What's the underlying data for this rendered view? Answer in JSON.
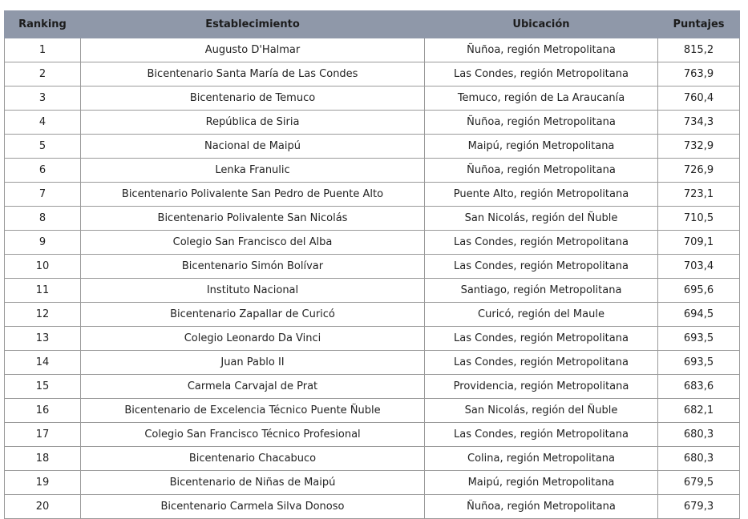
{
  "table": {
    "columns": [
      "Ranking",
      "Establecimiento",
      "Ubicación",
      "Puntajes"
    ],
    "rows": [
      [
        1,
        "Augusto D'Halmar",
        "Ñuñoa, región Metropolitana",
        "815,2"
      ],
      [
        2,
        "Bicentenario Santa María de Las Condes",
        "Las Condes, región Metropolitana",
        "763,9"
      ],
      [
        3,
        "Bicentenario de Temuco",
        "Temuco, región de La Araucanía",
        "760,4"
      ],
      [
        4,
        "República de Siria",
        "Ñuñoa, región Metropolitana",
        "734,3"
      ],
      [
        5,
        "Nacional de Maipú",
        "Maipú, región Metropolitana",
        "732,9"
      ],
      [
        6,
        "Lenka Franulic",
        "Ñuñoa, región Metropolitana",
        "726,9"
      ],
      [
        7,
        "Bicentenario Polivalente San Pedro de Puente Alto",
        "Puente Alto, región Metropolitana",
        "723,1"
      ],
      [
        8,
        "Bicentenario Polivalente San Nicolás",
        "San Nicolás, región del Ñuble",
        "710,5"
      ],
      [
        9,
        "Colegio San Francisco del Alba",
        "Las Condes, región Metropolitana",
        "709,1"
      ],
      [
        10,
        "Bicentenario Simón Bolívar",
        "Las Condes, región Metropolitana",
        "703,4"
      ],
      [
        11,
        "Instituto Nacional",
        "Santiago, región Metropolitana",
        "695,6"
      ],
      [
        12,
        "Bicentenario Zapallar de Curicó",
        "Curicó, región del Maule",
        "694,5"
      ],
      [
        13,
        "Colegio Leonardo Da Vinci",
        "Las Condes, región Metropolitana",
        "693,5"
      ],
      [
        14,
        "Juan Pablo II",
        "Las Condes, región Metropolitana",
        "693,5"
      ],
      [
        15,
        "Carmela Carvajal de Prat",
        "Providencia, región Metropolitana",
        "683,6"
      ],
      [
        16,
        "Bicentenario de Excelencia Técnico Puente Ñuble",
        "San Nicolás, región del Ñuble",
        "682,1"
      ],
      [
        17,
        "Colegio San Francisco Técnico Profesional",
        "Las Condes, región Metropolitana",
        "680,3"
      ],
      [
        18,
        "Bicentenario Chacabuco",
        "Colina, región Metropolitana",
        "680,3"
      ],
      [
        19,
        "Bicentenario de Niñas de Maipú",
        "Maipú, región Metropolitana",
        "679,5"
      ],
      [
        20,
        "Bicentenario Carmela Silva Donoso",
        "Ñuñoa, región Metropolitana",
        "679,3"
      ]
    ]
  }
}
